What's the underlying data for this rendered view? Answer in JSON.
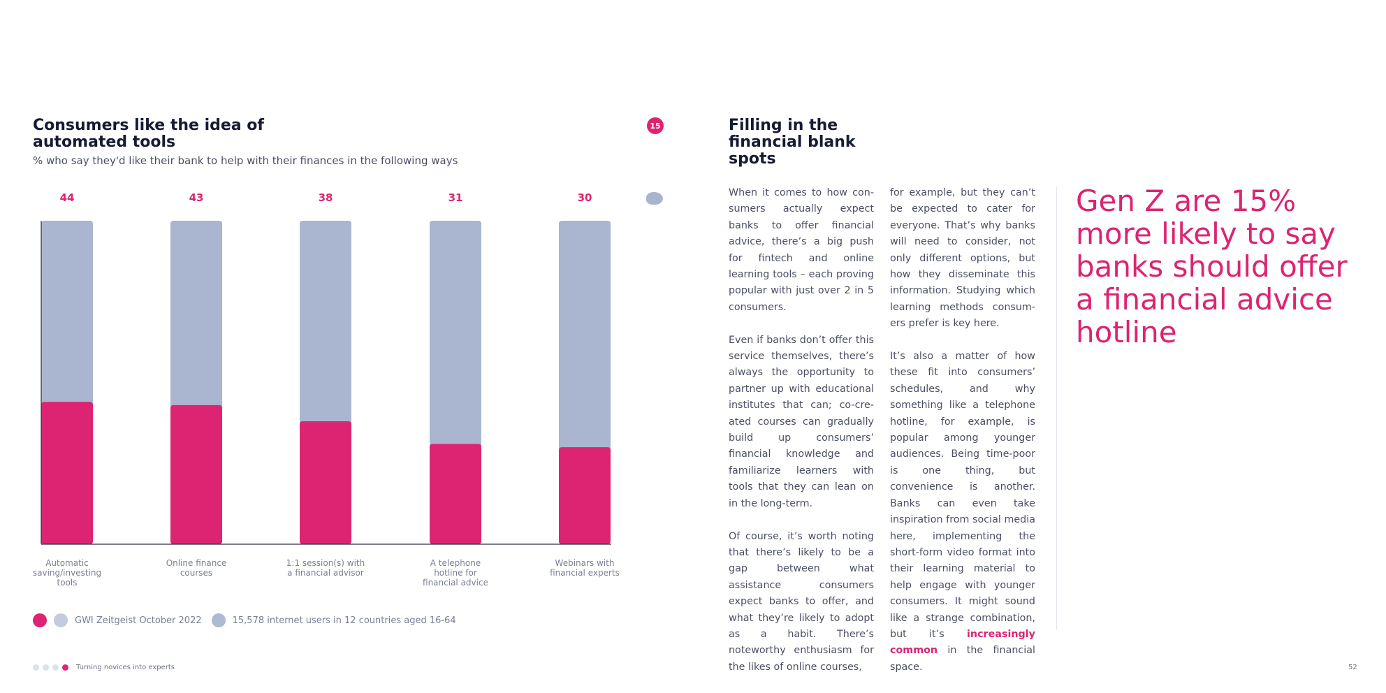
{
  "chart_data": {
    "type": "bar",
    "title": "Consumers like the idea of automated tools",
    "subtitle": "% who say they'd like their bank to help with their finances in the following ways",
    "categories": [
      [
        "Automatic",
        "saving/investing",
        "tools"
      ],
      [
        "Online finance",
        "courses"
      ],
      [
        "1:1 session(s) with",
        "a financial advisor"
      ],
      [
        "A telephone",
        "hotline for",
        "financial advice"
      ],
      [
        "Webinars with",
        "financial experts"
      ]
    ],
    "values": [
      44,
      43,
      38,
      31,
      30
    ],
    "ylim": [
      0,
      100
    ],
    "colors": {
      "value": "#dc2472",
      "remainder": "#aab6cf",
      "label": "#dc2472"
    }
  },
  "page_badge": "15",
  "legend": {
    "source": "GWI Zeitgeist October 2022",
    "base": "15,578 internet users in 12 countries aged 16-64"
  },
  "article": {
    "title": "Filling in the financial blank spots",
    "col1": [
      "When it comes to how con­sumers actually expect banks to offer financial advice, there’s a big push for fintech and online learning tools – each proving popular with just over 2 in 5 consumers.",
      "Even if banks don’t offer this service themselves, there’s always the opportunity to partner up with educational institutes that can; co-cre­ated courses can gradually build up consumers’ financial knowledge and familiarize learners with tools that they can lean on in the long-term.",
      "Of course, it’s worth noting that there’s likely to be a gap between what assistance consumers expect banks to offer, and what they’re likely to adopt as a habit. There’s noteworthy enthusiasm for the likes of online courses,"
    ],
    "col2_p1": "for example, but they can’t be expected to cater for everyone. That’s why banks will need to consider, not only different options, but how they disseminate this information. Studying which learning methods consum­ers prefer is key here.",
    "col2_p2": "It’s also a matter of how these fit into consumers’ schedules, and why something like a tele­phone hotline, for example, is popular among younger audiences. Being time-poor is one thing, but convenience is another. Banks can even take inspiration from social media here, implementing the short-form video format into their learning material to help engage with younger con­sumers. It might sound like a strange combination, but it’s",
    "col2_highlight": "increasingly common",
    "col2_end": " in the financial space."
  },
  "pull_quote": "Gen Z are 15% more likely to say banks should offer a financial advice hotline",
  "footer": {
    "text": "Turning novices into experts",
    "page_number": "52"
  }
}
